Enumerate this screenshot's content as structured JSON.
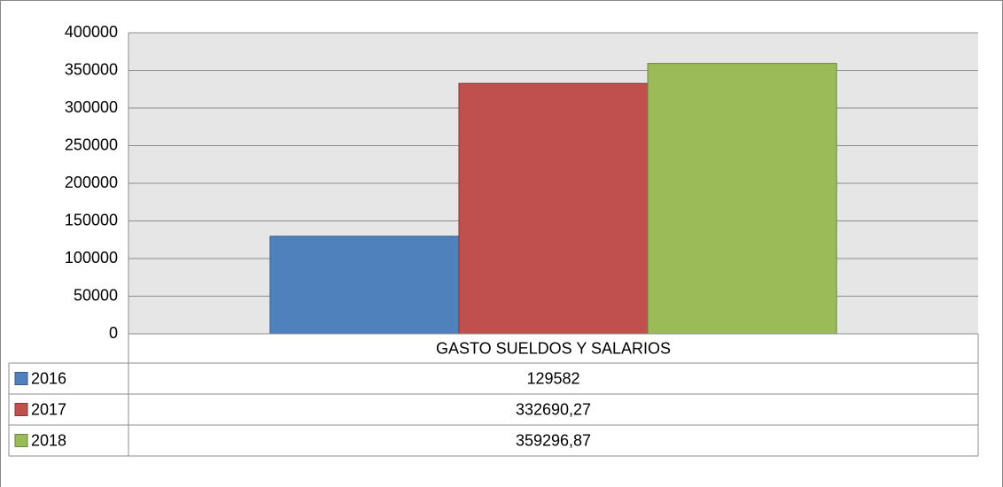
{
  "chart_data": {
    "type": "bar",
    "categories": [
      "GASTO SUELDOS Y SALARIOS"
    ],
    "series": [
      {
        "name": "2016",
        "color": "#4f81bd",
        "values": [
          129582
        ]
      },
      {
        "name": "2017",
        "color": "#c0504d",
        "values": [
          332690.27
        ],
        "value_labels": [
          "332690,27"
        ]
      },
      {
        "name": "2018",
        "color": "#9bbb59",
        "values": [
          359296.87
        ],
        "value_labels": [
          "359296,87"
        ]
      }
    ],
    "ylim": [
      0,
      400000
    ],
    "yticks": [
      0,
      50000,
      100000,
      150000,
      200000,
      250000,
      300000,
      350000,
      400000
    ],
    "grid": true,
    "data_table": true
  }
}
